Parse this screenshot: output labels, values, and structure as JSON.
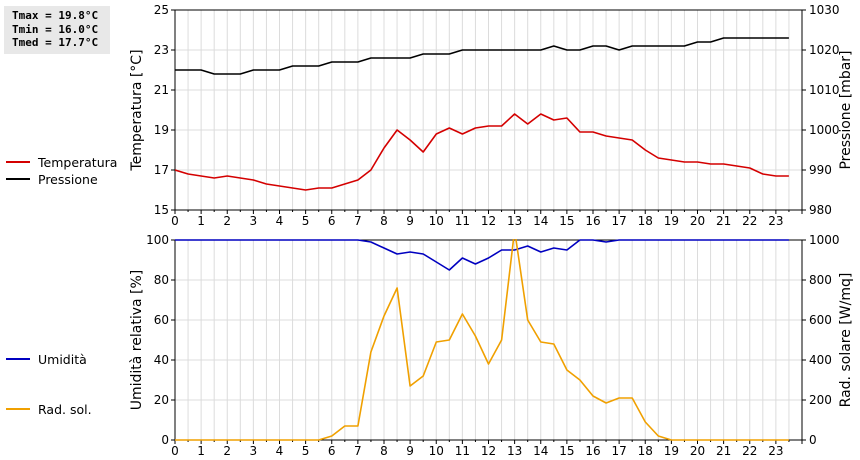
{
  "stats": {
    "tmax": "Tmax = 19.8°C",
    "tmin": "Tmin = 16.0°C",
    "tmed": "Tmed = 17.7°C"
  },
  "legend_top": [
    {
      "label": "Temperatura",
      "color": "#d40000"
    },
    {
      "label": "Pressione",
      "color": "#000000"
    }
  ],
  "legend_bottom": [
    {
      "label": "Umidità",
      "color": "#0000c0"
    },
    {
      "label": "Rad. sol.",
      "color": "#f0a000"
    }
  ],
  "chart_data": [
    {
      "type": "line",
      "x_ticks": [
        "0",
        "1",
        "2",
        "3",
        "4",
        "5",
        "6",
        "7",
        "8",
        "9",
        "10",
        "11",
        "12",
        "13",
        "14",
        "15",
        "16",
        "17",
        "18",
        "19",
        "20",
        "21",
        "22",
        "23"
      ],
      "xlim": [
        0,
        24
      ],
      "grid": true,
      "legend_placement": "left",
      "y_left": {
        "label": "Temperatura [°C]",
        "lim": [
          15,
          25
        ],
        "ticks": [
          "15",
          "17",
          "19",
          "21",
          "23",
          "25"
        ]
      },
      "y_right": {
        "label": "Pressione [mbar]",
        "lim": [
          980,
          1030
        ],
        "ticks": [
          "980",
          "990",
          "1000",
          "1010",
          "1020",
          "1030"
        ]
      },
      "series": [
        {
          "name": "Temperatura",
          "axis": "left",
          "color": "#d40000",
          "x": [
            0,
            0.5,
            1,
            1.5,
            2,
            2.5,
            3,
            3.5,
            4,
            4.5,
            5,
            5.5,
            6,
            6.5,
            7,
            7.5,
            8,
            8.5,
            9,
            9.5,
            10,
            10.5,
            11,
            11.5,
            12,
            12.5,
            13,
            13.5,
            14,
            14.5,
            15,
            15.5,
            16,
            16.5,
            17,
            17.5,
            18,
            18.5,
            19,
            19.5,
            20,
            20.5,
            21,
            21.5,
            22,
            22.5,
            23,
            23.5
          ],
          "y": [
            17.0,
            16.8,
            16.7,
            16.6,
            16.7,
            16.6,
            16.5,
            16.3,
            16.2,
            16.1,
            16.0,
            16.1,
            16.1,
            16.3,
            16.5,
            17.0,
            18.1,
            19.0,
            18.5,
            17.9,
            18.8,
            19.1,
            18.8,
            19.1,
            19.2,
            19.2,
            19.8,
            19.3,
            19.8,
            19.5,
            19.6,
            18.9,
            18.9,
            18.7,
            18.6,
            18.5,
            18.0,
            17.6,
            17.5,
            17.4,
            17.4,
            17.3,
            17.3,
            17.2,
            17.1,
            16.8,
            16.7,
            16.7
          ]
        },
        {
          "name": "Pressione",
          "axis": "right",
          "color": "#000000",
          "x": [
            0,
            0.5,
            1,
            1.5,
            2,
            2.5,
            3,
            3.5,
            4,
            4.5,
            5,
            5.5,
            6,
            6.5,
            7,
            7.5,
            8,
            8.5,
            9,
            9.5,
            10,
            10.5,
            11,
            11.5,
            12,
            12.5,
            13,
            13.5,
            14,
            14.5,
            15,
            15.5,
            16,
            16.5,
            17,
            17.5,
            18,
            18.5,
            19,
            19.5,
            20,
            20.5,
            21,
            21.5,
            22,
            22.5,
            23,
            23.5
          ],
          "y": [
            1015,
            1015,
            1015,
            1014,
            1014,
            1014,
            1015,
            1015,
            1015,
            1016,
            1016,
            1016,
            1017,
            1017,
            1017,
            1018,
            1018,
            1018,
            1018,
            1019,
            1019,
            1019,
            1020,
            1020,
            1020,
            1020,
            1020,
            1020,
            1020,
            1021,
            1020,
            1020,
            1021,
            1021,
            1020,
            1021,
            1021,
            1021,
            1021,
            1021,
            1022,
            1022,
            1023,
            1023,
            1023,
            1023,
            1023,
            1023
          ]
        }
      ]
    },
    {
      "type": "line",
      "x_ticks": [
        "0",
        "1",
        "2",
        "3",
        "4",
        "5",
        "6",
        "7",
        "8",
        "9",
        "10",
        "11",
        "12",
        "13",
        "14",
        "15",
        "16",
        "17",
        "18",
        "19",
        "20",
        "21",
        "22",
        "23"
      ],
      "xlim": [
        0,
        24
      ],
      "grid": true,
      "legend_placement": "left",
      "y_left": {
        "label": "Umidità relativa [%]",
        "lim": [
          0,
          100
        ],
        "ticks": [
          "0",
          "20",
          "40",
          "60",
          "80",
          "100"
        ]
      },
      "y_right": {
        "label": "Rad. solare [W/mq]",
        "lim": [
          0,
          1000
        ],
        "ticks": [
          "0",
          "200",
          "400",
          "600",
          "800",
          "1000"
        ]
      },
      "series": [
        {
          "name": "Umidità",
          "axis": "left",
          "color": "#0000c0",
          "x": [
            0,
            0.5,
            1,
            1.5,
            2,
            2.5,
            3,
            3.5,
            4,
            4.5,
            5,
            5.5,
            6,
            6.5,
            7,
            7.5,
            8,
            8.5,
            9,
            9.5,
            10,
            10.5,
            11,
            11.5,
            12,
            12.5,
            13,
            13.5,
            14,
            14.5,
            15,
            15.5,
            16,
            16.5,
            17,
            17.5,
            18,
            18.5,
            19,
            19.5,
            20,
            20.5,
            21,
            21.5,
            22,
            22.5,
            23,
            23.5
          ],
          "y": [
            100,
            100,
            100,
            100,
            100,
            100,
            100,
            100,
            100,
            100,
            100,
            100,
            100,
            100,
            100,
            99,
            96,
            93,
            94,
            93,
            89,
            85,
            91,
            88,
            91,
            95,
            95,
            97,
            94,
            96,
            95,
            100,
            100,
            99,
            100,
            100,
            100,
            100,
            100,
            100,
            100,
            100,
            100,
            100,
            100,
            100,
            100,
            100
          ]
        },
        {
          "name": "Rad. sol.",
          "axis": "right",
          "color": "#f0a000",
          "x": [
            0,
            0.5,
            1,
            1.5,
            2,
            2.5,
            3,
            3.5,
            4,
            4.5,
            5,
            5.5,
            6,
            6.5,
            7,
            7.5,
            8,
            8.5,
            9,
            9.5,
            10,
            10.5,
            11,
            11.5,
            12,
            12.5,
            13,
            13.5,
            14,
            14.5,
            15,
            15.5,
            16,
            16.5,
            17,
            17.5,
            18,
            18.5,
            19,
            19.5,
            20,
            20.5,
            21,
            21.5,
            22,
            22.5,
            23,
            23.5
          ],
          "y": [
            0,
            0,
            0,
            0,
            0,
            0,
            0,
            0,
            0,
            0,
            0,
            0,
            20,
            70,
            70,
            440,
            620,
            760,
            270,
            320,
            490,
            500,
            630,
            520,
            380,
            500,
            1050,
            600,
            490,
            480,
            350,
            300,
            220,
            185,
            210,
            210,
            90,
            20,
            0,
            0,
            0,
            0,
            0,
            0,
            0,
            0,
            0,
            0
          ]
        }
      ]
    }
  ]
}
